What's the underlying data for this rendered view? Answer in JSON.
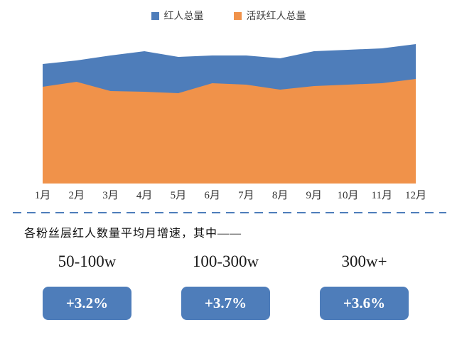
{
  "legend": [
    {
      "label": "红人总量",
      "color": "#4e7dba"
    },
    {
      "label": "活跃红人总量",
      "color": "#f0924a"
    }
  ],
  "chart_data": {
    "type": "area",
    "title": "",
    "xlabel": "",
    "ylabel": "",
    "categories": [
      "1月",
      "2月",
      "3月",
      "4月",
      "5月",
      "6月",
      "7月",
      "8月",
      "9月",
      "10月",
      "11月",
      "12月"
    ],
    "series": [
      {
        "name": "红人总量",
        "color": "#4e7dba",
        "values": [
          168,
          173,
          180,
          186,
          178,
          180,
          180,
          176,
          186,
          188,
          190,
          196
        ]
      },
      {
        "name": "活跃红人总量",
        "color": "#f0924a",
        "values": [
          136,
          143,
          130,
          129,
          127,
          141,
          139,
          132,
          137,
          139,
          141,
          147
        ]
      }
    ],
    "ylim": [
      0,
      200
    ],
    "grid": false,
    "legend_position": "top"
  },
  "divider_color": "#4e7dba",
  "caption": "各粉丝层红人数量平均月增速，其中——",
  "tiers": [
    {
      "label": "50-100w",
      "growth": "+3.2%"
    },
    {
      "label": "100-300w",
      "growth": "+3.7%"
    },
    {
      "label": "300w+",
      "growth": "+3.6%"
    }
  ],
  "badge_color": "#4e7dba"
}
